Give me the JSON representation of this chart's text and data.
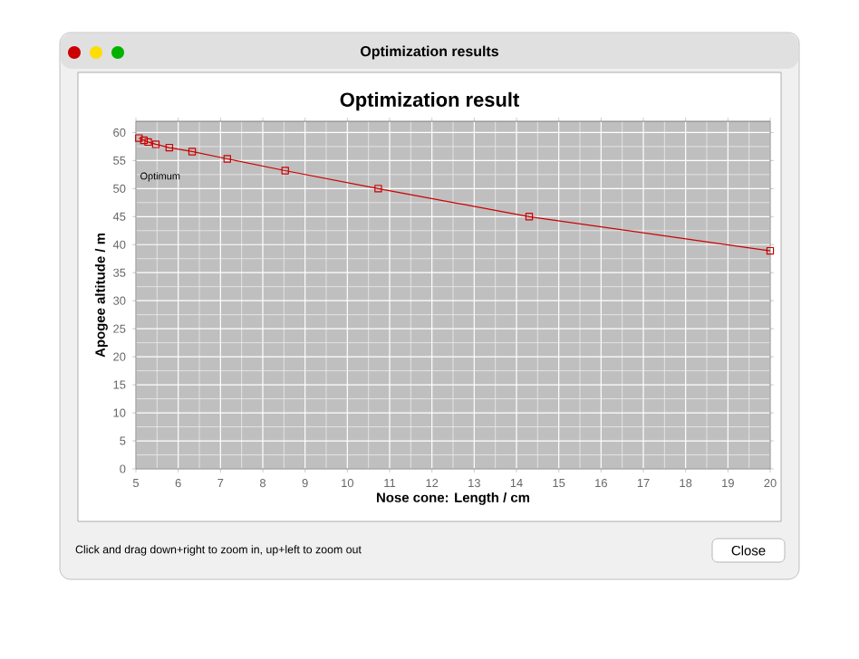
{
  "chart_data": {
    "type": "line",
    "title": "Optimization result",
    "xlabel": "Nose cone: Length / cm",
    "ylabel": "Apogee altitude / m",
    "x": [
      5.07,
      5.19,
      5.29,
      5.47,
      5.79,
      6.33,
      7.16,
      8.53,
      10.73,
      14.3,
      20
    ],
    "series": [
      {
        "color": "#cc0000",
        "values": [
          59.0,
          58.6,
          58.3,
          57.9,
          57.3,
          56.6,
          55.3,
          53.2,
          50.0,
          45.0,
          38.9
        ]
      }
    ],
    "marker": "square",
    "line_style": "solid",
    "grid": true,
    "xlim": [
      5,
      20
    ],
    "ylim": [
      0,
      62
    ],
    "xticks": [
      5,
      6,
      7,
      8,
      9,
      10,
      11,
      12,
      13,
      14,
      15,
      16,
      17,
      18,
      19,
      20
    ],
    "yticks": [
      0,
      5,
      10,
      15,
      20,
      25,
      30,
      35,
      40,
      45,
      50,
      55,
      60
    ],
    "annotations": [
      "Optimum",
      "Optimization results",
      "Click and drag down+right to zoom in, up+left to zoom out",
      "Close"
    ]
  }
}
